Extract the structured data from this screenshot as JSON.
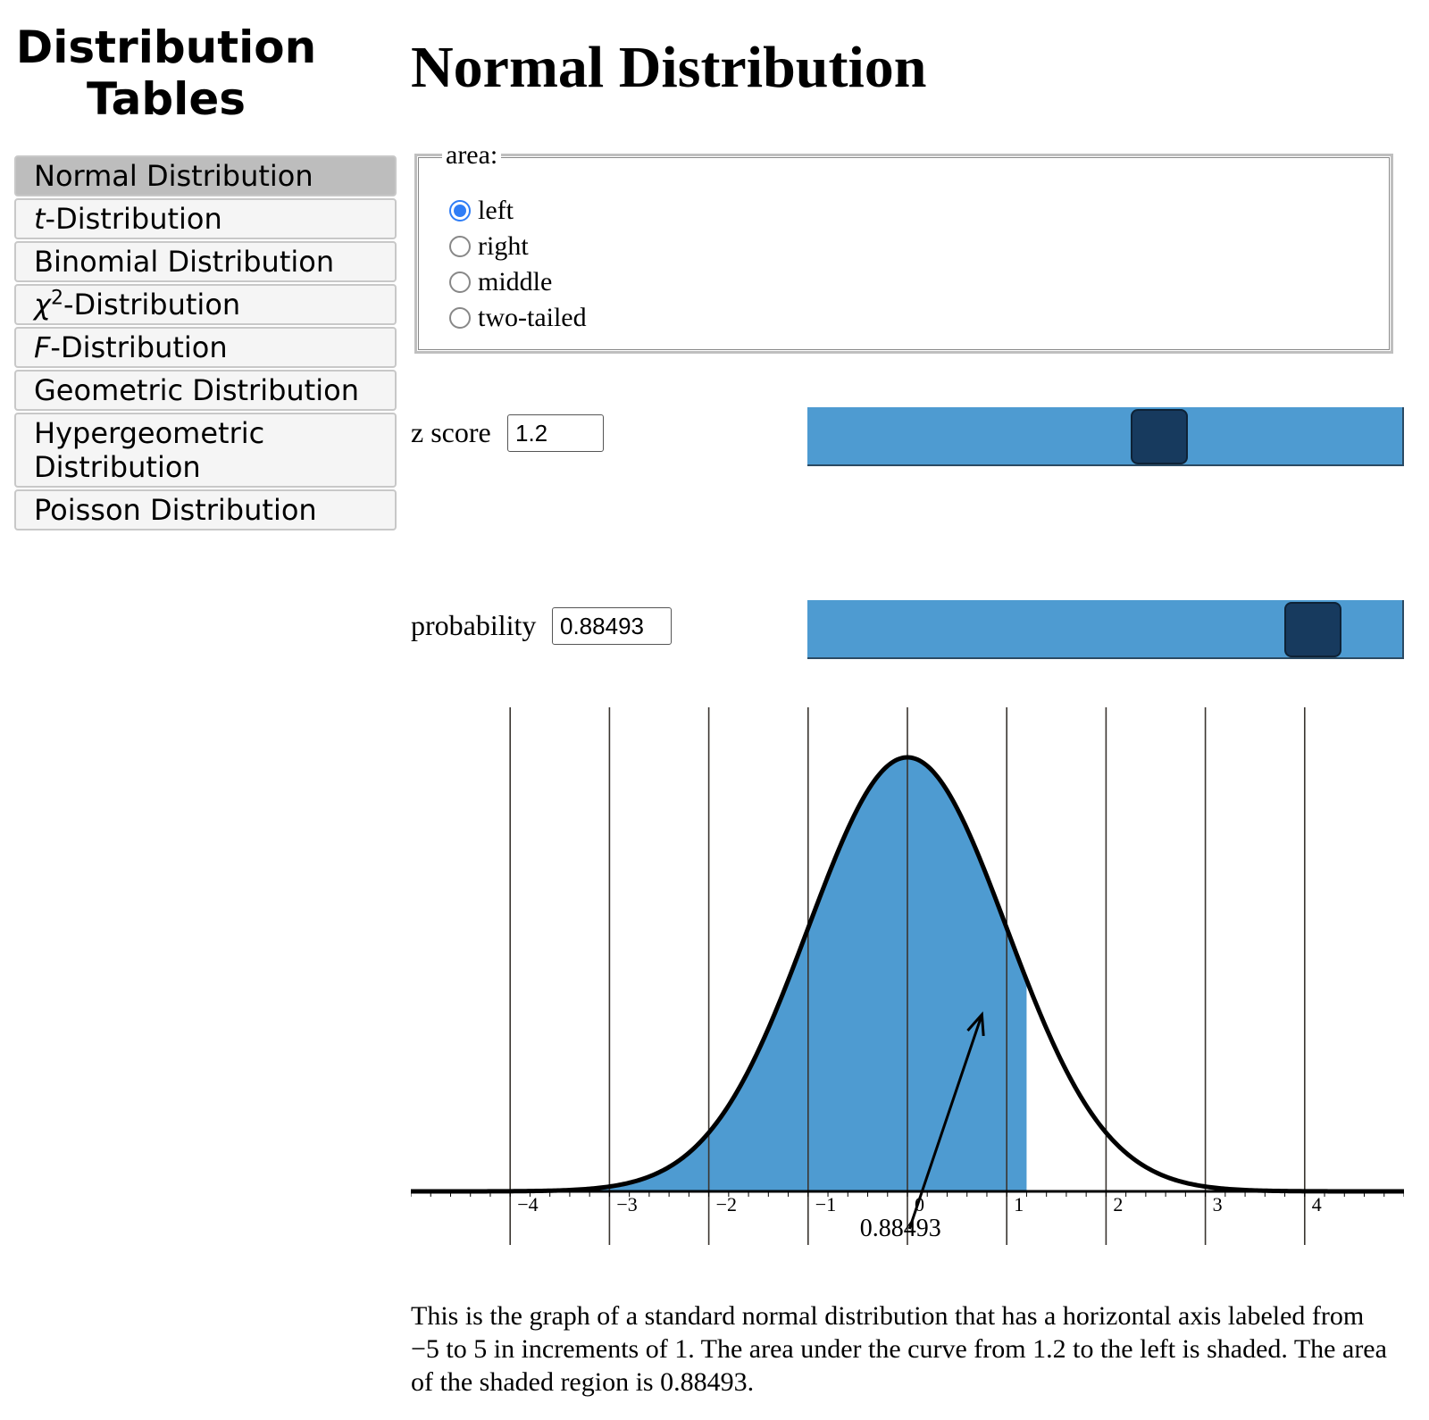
{
  "sidebar": {
    "title_line1": "Distribution",
    "title_line2": "Tables",
    "items": [
      {
        "label": "Normal Distribution",
        "active": true
      },
      {
        "prefix": "t",
        "label": "-Distribution"
      },
      {
        "label": "Binomial Distribution"
      },
      {
        "prefix": "χ",
        "sup": "2",
        "label": "-Distribution"
      },
      {
        "prefix": "F",
        "label": "-Distribution"
      },
      {
        "label": "Geometric Distribution"
      },
      {
        "label": "Hypergeometric Distribution"
      },
      {
        "label": "Poisson Distribution"
      }
    ]
  },
  "main": {
    "title": "Normal Distribution",
    "area": {
      "legend": "area:",
      "options": [
        "left",
        "right",
        "middle",
        "two-tailed"
      ],
      "selected": "left"
    },
    "z_score": {
      "label": "z score",
      "value": "1.2",
      "slider_fraction": 0.6
    },
    "probability": {
      "label": "probability",
      "value": "0.88493",
      "slider_fraction": 0.88493
    },
    "description": "This is the graph of a standard normal distribution that has a horizontal axis labeled from −5 to 5 in increments of 1. The area under the curve from 1.2 to the left is shaded. The area of the shaded region is 0.88493."
  },
  "chart_data": {
    "type": "area",
    "distribution": "standard normal",
    "xlim": [
      -5,
      5
    ],
    "tick_labels": [
      "−4",
      "−3",
      "−2",
      "−1",
      "0",
      "1",
      "2",
      "3",
      "4"
    ],
    "tick_values": [
      -4,
      -3,
      -2,
      -1,
      0,
      1,
      2,
      3,
      4
    ],
    "shaded_region": {
      "from": -5,
      "to": 1.2,
      "side": "left"
    },
    "shaded_area_label": "0.88493",
    "grid": true,
    "colors": {
      "fill": "#4e9bd1",
      "curve": "#000000",
      "grid": "#3a3530"
    }
  }
}
